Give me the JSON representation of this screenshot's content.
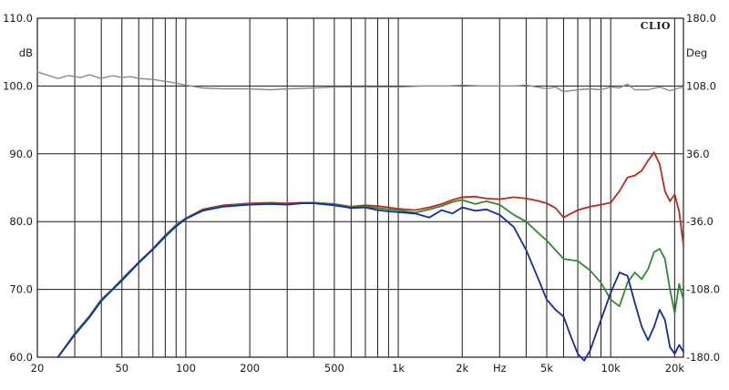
{
  "chart_data": {
    "type": "line",
    "brand": "CLIO",
    "x_scale": "log",
    "xlim": [
      20,
      22000
    ],
    "ylim": [
      60,
      110
    ],
    "y2lim": [
      -180,
      180
    ],
    "grid": true,
    "ylabel": "dB",
    "y2label": "Deg",
    "x_ticks": [
      {
        "value": 20,
        "label": "20"
      },
      {
        "value": 50,
        "label": "50"
      },
      {
        "value": 100,
        "label": "100"
      },
      {
        "value": 200,
        "label": "200"
      },
      {
        "value": 500,
        "label": "500"
      },
      {
        "value": 1000,
        "label": "1k"
      },
      {
        "value": 2000,
        "label": "2k"
      },
      {
        "value": 3000,
        "label": "Hz"
      },
      {
        "value": 5000,
        "label": "5k"
      },
      {
        "value": 10000,
        "label": "10k"
      },
      {
        "value": 20000,
        "label": "20k"
      }
    ],
    "y_ticks": [
      {
        "value": 110,
        "label": "110.0"
      },
      {
        "value": 100,
        "label": "100.0"
      },
      {
        "value": 90,
        "label": "90.0"
      },
      {
        "value": 80,
        "label": "80.0"
      },
      {
        "value": 70,
        "label": "70.0"
      },
      {
        "value": 60,
        "label": "60.0"
      }
    ],
    "y2_ticks": [
      {
        "value": 180,
        "label": "180.0"
      },
      {
        "value": 108,
        "label": "108.0"
      },
      {
        "value": 36,
        "label": "36.0"
      },
      {
        "value": -36,
        "label": "-36.0"
      },
      {
        "value": -108,
        "label": "-108.0"
      },
      {
        "value": -180,
        "label": "-180.0"
      }
    ],
    "series": [
      {
        "color": "#8a8a8a",
        "axis": "right",
        "points": [
          [
            20,
            123
          ],
          [
            22,
            120
          ],
          [
            25,
            116
          ],
          [
            28,
            119
          ],
          [
            32,
            117
          ],
          [
            35,
            120
          ],
          [
            40,
            116
          ],
          [
            45,
            119
          ],
          [
            50,
            117
          ],
          [
            55,
            118
          ],
          [
            60,
            116
          ],
          [
            70,
            115
          ],
          [
            80,
            113
          ],
          [
            90,
            111
          ],
          [
            100,
            109
          ],
          [
            120,
            106
          ],
          [
            150,
            105
          ],
          [
            200,
            105
          ],
          [
            250,
            104
          ],
          [
            300,
            105
          ],
          [
            400,
            106
          ],
          [
            500,
            107
          ],
          [
            600,
            107
          ],
          [
            700,
            107
          ],
          [
            800,
            107
          ],
          [
            1000,
            107
          ],
          [
            1300,
            108
          ],
          [
            1700,
            108
          ],
          [
            2000,
            109
          ],
          [
            2500,
            108
          ],
          [
            3000,
            108
          ],
          [
            3500,
            108
          ],
          [
            4000,
            109
          ],
          [
            4500,
            107
          ],
          [
            5000,
            105
          ],
          [
            5500,
            107
          ],
          [
            6000,
            102
          ],
          [
            7000,
            104
          ],
          [
            8000,
            105
          ],
          [
            9000,
            104
          ],
          [
            10000,
            107
          ],
          [
            11000,
            106
          ],
          [
            12000,
            110
          ],
          [
            13000,
            104
          ],
          [
            15000,
            104
          ],
          [
            17000,
            107
          ],
          [
            19000,
            103
          ],
          [
            21000,
            106
          ],
          [
            22000,
            107
          ]
        ]
      },
      {
        "color": "#c0281e",
        "axis": "left",
        "points": [
          [
            25,
            60
          ],
          [
            30,
            63.5
          ],
          [
            35,
            66
          ],
          [
            40,
            68.5
          ],
          [
            45,
            70
          ],
          [
            50,
            71.5
          ],
          [
            60,
            74
          ],
          [
            70,
            76
          ],
          [
            80,
            78
          ],
          [
            90,
            79.5
          ],
          [
            100,
            80.5
          ],
          [
            120,
            81.8
          ],
          [
            150,
            82.4
          ],
          [
            200,
            82.7
          ],
          [
            250,
            82.8
          ],
          [
            300,
            82.7
          ],
          [
            350,
            82.8
          ],
          [
            400,
            82.8
          ],
          [
            500,
            82.6
          ],
          [
            600,
            82.2
          ],
          [
            700,
            82.4
          ],
          [
            800,
            82.3
          ],
          [
            900,
            82.1
          ],
          [
            1000,
            81.9
          ],
          [
            1200,
            81.7
          ],
          [
            1400,
            82.1
          ],
          [
            1600,
            82.6
          ],
          [
            1800,
            83.2
          ],
          [
            2000,
            83.6
          ],
          [
            2300,
            83.7
          ],
          [
            2600,
            83.4
          ],
          [
            3000,
            83.3
          ],
          [
            3500,
            83.6
          ],
          [
            4000,
            83.4
          ],
          [
            4500,
            83.1
          ],
          [
            5000,
            82.7
          ],
          [
            5500,
            82.0
          ],
          [
            6000,
            80.6
          ],
          [
            6500,
            81.2
          ],
          [
            7000,
            81.7
          ],
          [
            8000,
            82.2
          ],
          [
            9000,
            82.5
          ],
          [
            10000,
            82.8
          ],
          [
            11000,
            84.5
          ],
          [
            12000,
            86.5
          ],
          [
            13000,
            86.8
          ],
          [
            14000,
            87.5
          ],
          [
            15000,
            89.0
          ],
          [
            16000,
            90.2
          ],
          [
            17000,
            88.5
          ],
          [
            18000,
            84.5
          ],
          [
            19000,
            83.0
          ],
          [
            20000,
            84.0
          ],
          [
            21000,
            81.5
          ],
          [
            22000,
            76.5
          ]
        ]
      },
      {
        "color": "#2f8a2f",
        "axis": "left",
        "points": [
          [
            25,
            60
          ],
          [
            30,
            63.5
          ],
          [
            35,
            66
          ],
          [
            40,
            68.5
          ],
          [
            45,
            70
          ],
          [
            50,
            71.5
          ],
          [
            60,
            74
          ],
          [
            70,
            76
          ],
          [
            80,
            78
          ],
          [
            90,
            79.5
          ],
          [
            100,
            80.5
          ],
          [
            120,
            81.7
          ],
          [
            150,
            82.3
          ],
          [
            200,
            82.6
          ],
          [
            250,
            82.7
          ],
          [
            300,
            82.6
          ],
          [
            350,
            82.7
          ],
          [
            400,
            82.8
          ],
          [
            500,
            82.6
          ],
          [
            600,
            82.1
          ],
          [
            700,
            82.2
          ],
          [
            800,
            82.0
          ],
          [
            900,
            81.8
          ],
          [
            1000,
            81.7
          ],
          [
            1200,
            81.3
          ],
          [
            1400,
            81.8
          ],
          [
            1600,
            82.3
          ],
          [
            1800,
            82.9
          ],
          [
            2000,
            83.2
          ],
          [
            2300,
            82.6
          ],
          [
            2600,
            83.0
          ],
          [
            3000,
            82.5
          ],
          [
            3500,
            81.0
          ],
          [
            4000,
            80.0
          ],
          [
            4500,
            78.5
          ],
          [
            5000,
            77.2
          ],
          [
            5500,
            75.8
          ],
          [
            6000,
            74.5
          ],
          [
            7000,
            74.2
          ],
          [
            8000,
            72.8
          ],
          [
            9000,
            71.0
          ],
          [
            10000,
            68.5
          ],
          [
            11000,
            67.5
          ],
          [
            12000,
            71.0
          ],
          [
            13000,
            72.5
          ],
          [
            14000,
            71.5
          ],
          [
            15000,
            73.0
          ],
          [
            16000,
            75.5
          ],
          [
            17000,
            76.0
          ],
          [
            18000,
            74.5
          ],
          [
            19000,
            70.0
          ],
          [
            20000,
            66.5
          ],
          [
            21000,
            70.8
          ],
          [
            22000,
            68.5
          ]
        ]
      },
      {
        "color": "#1428b4",
        "axis": "left",
        "points": [
          [
            25,
            60
          ],
          [
            30,
            63.3
          ],
          [
            35,
            65.8
          ],
          [
            40,
            68.3
          ],
          [
            45,
            69.9
          ],
          [
            50,
            71.3
          ],
          [
            60,
            73.9
          ],
          [
            70,
            75.9
          ],
          [
            80,
            77.8
          ],
          [
            90,
            79.3
          ],
          [
            100,
            80.4
          ],
          [
            120,
            81.6
          ],
          [
            150,
            82.2
          ],
          [
            200,
            82.5
          ],
          [
            250,
            82.6
          ],
          [
            300,
            82.5
          ],
          [
            350,
            82.7
          ],
          [
            400,
            82.7
          ],
          [
            500,
            82.4
          ],
          [
            600,
            82.0
          ],
          [
            700,
            82.1
          ],
          [
            800,
            81.7
          ],
          [
            900,
            81.5
          ],
          [
            1000,
            81.4
          ],
          [
            1200,
            81.2
          ],
          [
            1400,
            80.6
          ],
          [
            1600,
            81.7
          ],
          [
            1800,
            81.2
          ],
          [
            2000,
            82.1
          ],
          [
            2300,
            81.6
          ],
          [
            2600,
            81.8
          ],
          [
            3000,
            81.0
          ],
          [
            3500,
            79.2
          ],
          [
            4000,
            75.8
          ],
          [
            4500,
            72.0
          ],
          [
            5000,
            68.5
          ],
          [
            5500,
            67.0
          ],
          [
            6000,
            66.0
          ],
          [
            6500,
            63.0
          ],
          [
            7000,
            60.5
          ],
          [
            7500,
            59.5
          ],
          [
            8000,
            61.0
          ],
          [
            9000,
            65.5
          ],
          [
            10000,
            69.5
          ],
          [
            11000,
            72.5
          ],
          [
            12000,
            72.0
          ],
          [
            13000,
            68.0
          ],
          [
            14000,
            64.5
          ],
          [
            15000,
            62.5
          ],
          [
            16000,
            64.5
          ],
          [
            17000,
            67.0
          ],
          [
            18000,
            65.5
          ],
          [
            19000,
            61.5
          ],
          [
            20000,
            60.5
          ],
          [
            21000,
            61.8
          ],
          [
            22000,
            60.8
          ]
        ]
      }
    ]
  }
}
